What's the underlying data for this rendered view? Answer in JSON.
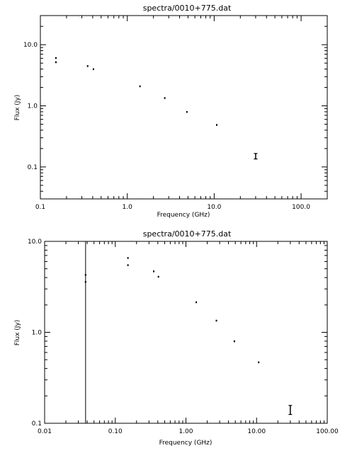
{
  "chart_data": [
    {
      "type": "scatter",
      "title": "spectra/0010+775.dat",
      "xlabel": "Frequency (GHz)",
      "ylabel": "Flux (Jy)",
      "xscale": "log",
      "yscale": "log",
      "xlim": [
        0.1,
        200
      ],
      "ylim": [
        0.03,
        30
      ],
      "xticks": [
        {
          "v": 0.1,
          "label": "0.1"
        },
        {
          "v": 1,
          "label": "1.0"
        },
        {
          "v": 10,
          "label": "10.0"
        },
        {
          "v": 100,
          "label": "100.0"
        }
      ],
      "yticks": [
        {
          "v": 0.1,
          "label": "0.1"
        },
        {
          "v": 1,
          "label": "1.0"
        },
        {
          "v": 10,
          "label": "10.0"
        }
      ],
      "points": [
        {
          "x": 0.151,
          "y": 6.1
        },
        {
          "x": 0.151,
          "y": 5.2
        },
        {
          "x": 0.35,
          "y": 4.5
        },
        {
          "x": 0.408,
          "y": 4.0
        },
        {
          "x": 1.4,
          "y": 2.1
        },
        {
          "x": 2.7,
          "y": 1.35
        },
        {
          "x": 4.85,
          "y": 0.8
        },
        {
          "x": 10.7,
          "y": 0.49
        },
        {
          "x": 30,
          "y": 0.15,
          "yerr": [
            0.135,
            0.166
          ]
        }
      ]
    },
    {
      "type": "scatter",
      "title": "spectra/0010+775.dat",
      "xlabel": "Frequency (GHz)",
      "ylabel": "Flux (Jy)",
      "xscale": "log",
      "yscale": "log",
      "xlim": [
        0.01,
        100
      ],
      "ylim": [
        0.1,
        10
      ],
      "xticks": [
        {
          "v": 0.01,
          "label": "0.01"
        },
        {
          "v": 0.1,
          "label": "0.10"
        },
        {
          "v": 1,
          "label": "1.00"
        },
        {
          "v": 10,
          "label": "10.00"
        },
        {
          "v": 100,
          "label": "100.00"
        }
      ],
      "yticks": [
        {
          "v": 0.1,
          "label": "0.1"
        },
        {
          "v": 1,
          "label": "1.0"
        },
        {
          "v": 10,
          "label": "10.0"
        }
      ],
      "vline_x": 0.038,
      "points": [
        {
          "x": 0.038,
          "y": 4.3
        },
        {
          "x": 0.038,
          "y": 3.6
        },
        {
          "x": 0.151,
          "y": 6.6
        },
        {
          "x": 0.151,
          "y": 5.5
        },
        {
          "x": 0.35,
          "y": 4.7
        },
        {
          "x": 0.408,
          "y": 4.1
        },
        {
          "x": 1.4,
          "y": 2.15
        },
        {
          "x": 2.7,
          "y": 1.35
        },
        {
          "x": 4.85,
          "y": 0.8
        },
        {
          "x": 10.7,
          "y": 0.47
        },
        {
          "x": 30,
          "y": 0.14,
          "yerr": [
            0.125,
            0.157
          ]
        }
      ]
    }
  ]
}
